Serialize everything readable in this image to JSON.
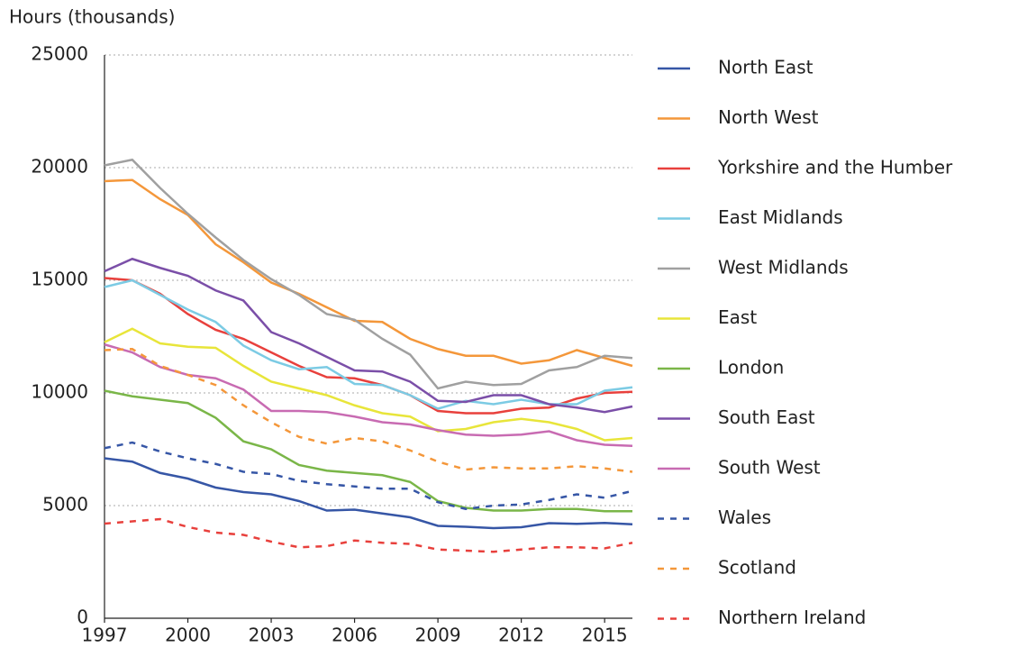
{
  "chart_data": {
    "type": "line",
    "y_label": "Hours (thousands)",
    "x": [
      1997,
      1998,
      1999,
      2000,
      2001,
      2002,
      2003,
      2004,
      2005,
      2006,
      2007,
      2008,
      2009,
      2010,
      2011,
      2012,
      2013,
      2014,
      2015,
      2016
    ],
    "xlim": [
      1997,
      2016
    ],
    "xticks": [
      1997,
      2000,
      2003,
      2006,
      2009,
      2012,
      2015
    ],
    "ylim": [
      0,
      25000
    ],
    "yticks": [
      0,
      5000,
      10000,
      15000,
      20000,
      25000
    ],
    "grid": true,
    "legend": "right",
    "series": [
      {
        "name": "North East",
        "color": "#3656a6",
        "dashed": false,
        "values": [
          7100,
          6950,
          6450,
          6200,
          5800,
          5600,
          5500,
          5200,
          4780,
          4820,
          4650,
          4480,
          4100,
          4060,
          4000,
          4040,
          4220,
          4190,
          4230,
          4170
        ]
      },
      {
        "name": "North West",
        "color": "#f4973a",
        "dashed": false,
        "values": [
          19400,
          19450,
          18600,
          17900,
          16600,
          15800,
          14900,
          14400,
          13800,
          13200,
          13150,
          12400,
          11950,
          11650,
          11650,
          11300,
          11450,
          11900,
          11550,
          11200
        ]
      },
      {
        "name": "Yorkshire and the Humber",
        "color": "#e8403c",
        "dashed": false,
        "values": [
          15100,
          15000,
          14400,
          13500,
          12800,
          12400,
          11800,
          11200,
          10700,
          10650,
          10350,
          9900,
          9200,
          9100,
          9100,
          9300,
          9350,
          9750,
          10000,
          10050
        ]
      },
      {
        "name": "East Midlands",
        "color": "#7ccbe4",
        "dashed": false,
        "values": [
          14700,
          15000,
          14350,
          13700,
          13150,
          12100,
          11450,
          11050,
          11150,
          10400,
          10350,
          9900,
          9300,
          9650,
          9500,
          9700,
          9500,
          9500,
          10100,
          10250
        ]
      },
      {
        "name": "West Midlands",
        "color": "#a0a0a0",
        "dashed": false,
        "values": [
          20100,
          20350,
          19100,
          17950,
          16900,
          15900,
          15050,
          14350,
          13500,
          13250,
          12400,
          11700,
          10200,
          10500,
          10350,
          10400,
          11000,
          11150,
          11650,
          11550
        ]
      },
      {
        "name": "East",
        "color": "#e8e53a",
        "dashed": false,
        "values": [
          12250,
          12850,
          12200,
          12050,
          12000,
          11200,
          10500,
          10200,
          9900,
          9450,
          9100,
          8950,
          8300,
          8400,
          8700,
          8850,
          8700,
          8400,
          7900,
          8000
        ]
      },
      {
        "name": "London",
        "color": "#7ab648",
        "dashed": false,
        "values": [
          10100,
          9850,
          9700,
          9550,
          8900,
          7850,
          7500,
          6800,
          6550,
          6450,
          6350,
          6050,
          5200,
          4900,
          4780,
          4780,
          4850,
          4850,
          4750,
          4750
        ]
      },
      {
        "name": "South East",
        "color": "#7b4fa8",
        "dashed": false,
        "values": [
          15400,
          15950,
          15550,
          15200,
          14550,
          14100,
          12700,
          12200,
          11600,
          11000,
          10950,
          10500,
          9650,
          9600,
          9900,
          9900,
          9500,
          9350,
          9150,
          9400
        ]
      },
      {
        "name": "South West",
        "color": "#c86bb2",
        "dashed": false,
        "values": [
          12150,
          11800,
          11150,
          10800,
          10650,
          10150,
          9200,
          9200,
          9150,
          8950,
          8700,
          8600,
          8350,
          8150,
          8100,
          8150,
          8300,
          7900,
          7700,
          7650
        ]
      },
      {
        "name": "Wales",
        "color": "#3656a6",
        "dashed": true,
        "values": [
          7550,
          7800,
          7400,
          7100,
          6850,
          6500,
          6400,
          6100,
          5950,
          5850,
          5750,
          5750,
          5150,
          4850,
          5000,
          5050,
          5250,
          5500,
          5350,
          5650
        ]
      },
      {
        "name": "Scotland",
        "color": "#f4973a",
        "dashed": true,
        "values": [
          11900,
          11950,
          11200,
          10800,
          10350,
          9450,
          8700,
          8050,
          7750,
          8000,
          7850,
          7450,
          6950,
          6600,
          6700,
          6650,
          6650,
          6750,
          6650,
          6500
        ]
      },
      {
        "name": "Northern Ireland",
        "color": "#e8403c",
        "dashed": true,
        "values": [
          4200,
          4300,
          4400,
          4050,
          3800,
          3700,
          3400,
          3150,
          3200,
          3450,
          3350,
          3300,
          3050,
          3000,
          2950,
          3050,
          3150,
          3150,
          3100,
          3350
        ]
      }
    ]
  }
}
